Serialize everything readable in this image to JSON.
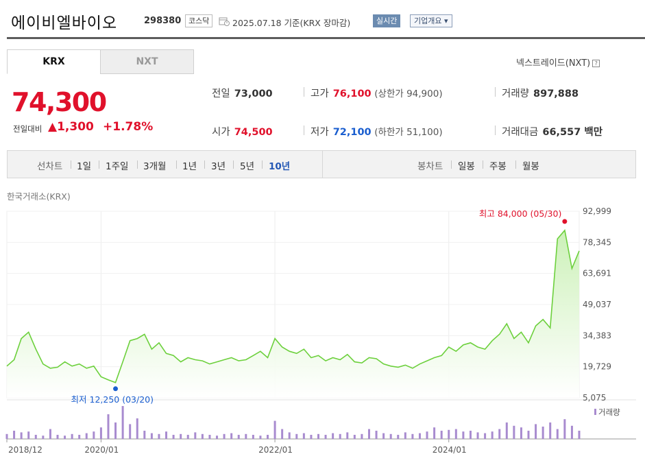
{
  "header": {
    "company_name": "에이비엘바이오",
    "code": "298380",
    "market": "코스닥",
    "date_basis": "2025.07.18  기준(KRX 장마감)",
    "realtime_label": "실시간",
    "company_info_label": "기업개요 ▾"
  },
  "tabs": {
    "krx": "KRX",
    "nxt": "NXT"
  },
  "nxt_link": "넥스트레이드(NXT)",
  "price": {
    "current": "74,300",
    "change_label": "전일대비",
    "change_value": "▲1,300",
    "change_pct": "+1.78%"
  },
  "stats": {
    "prev_label": "전일",
    "prev": "73,000",
    "high_label": "고가",
    "high": "76,100",
    "upper_limit": "(상한가 94,900)",
    "volume_label": "거래량",
    "volume": "897,888",
    "open_label": "시가",
    "open": "74,500",
    "low_label": "저가",
    "low": "72,100",
    "lower_limit": "(하한가 51,100)",
    "amount_label": "거래대금",
    "amount": "66,557 백만"
  },
  "periods": {
    "line_label": "선차트",
    "items": [
      "1일",
      "1주일",
      "3개월",
      "1년",
      "3년",
      "5년",
      "10년"
    ],
    "selected": "10년",
    "candle_label": "봉차트",
    "candle_items": [
      "일봉",
      "주봉",
      "월봉"
    ]
  },
  "exchange_label": "한국거래소(KRX)",
  "colors": {
    "up": "#e0112b",
    "down": "#1a5ecf",
    "line": "#6cd03c"
  },
  "chart_data": {
    "type": "area",
    "x_ticks": [
      "2018/12",
      "2020/01",
      "2022/01",
      "2024/01"
    ],
    "y_ticks": [
      92999,
      78345,
      63691,
      49037,
      34383,
      19729,
      5075
    ],
    "ylim": [
      5075,
      92999
    ],
    "max_annotation": "최고 84,000 (05/30)",
    "min_annotation": "최저 12,250 (03/20)",
    "volume_legend": "거래량",
    "x": [
      "2018/12",
      "2019/01",
      "2019/02",
      "2019/03",
      "2019/04",
      "2019/05",
      "2019/06",
      "2019/07",
      "2019/08",
      "2019/09",
      "2019/10",
      "2019/11",
      "2019/12",
      "2020/01",
      "2020/02",
      "2020/03",
      "2020/04",
      "2020/05",
      "2020/06",
      "2020/07",
      "2020/08",
      "2020/09",
      "2020/10",
      "2020/11",
      "2020/12",
      "2021/01",
      "2021/02",
      "2021/03",
      "2021/04",
      "2021/05",
      "2021/06",
      "2021/07",
      "2021/08",
      "2021/09",
      "2021/10",
      "2021/11",
      "2021/12",
      "2022/01",
      "2022/02",
      "2022/03",
      "2022/04",
      "2022/05",
      "2022/06",
      "2022/07",
      "2022/08",
      "2022/09",
      "2022/10",
      "2022/11",
      "2022/12",
      "2023/01",
      "2023/02",
      "2023/03",
      "2023/04",
      "2023/05",
      "2023/06",
      "2023/07",
      "2023/08",
      "2023/09",
      "2023/10",
      "2023/11",
      "2023/12",
      "2024/01",
      "2024/02",
      "2024/03",
      "2024/04",
      "2024/05",
      "2024/06",
      "2024/07",
      "2024/08",
      "2024/09",
      "2024/10",
      "2024/11",
      "2024/12",
      "2025/01",
      "2025/02",
      "2025/03",
      "2025/04",
      "2025/05",
      "2025/06",
      "2025/07"
    ],
    "values": [
      20000,
      23000,
      33000,
      36000,
      28000,
      21000,
      19000,
      19500,
      22000,
      20000,
      21000,
      19000,
      20000,
      15000,
      13500,
      12250,
      22000,
      32000,
      33000,
      35000,
      28000,
      31000,
      26000,
      25000,
      22000,
      24000,
      23000,
      22500,
      21000,
      22000,
      23000,
      24000,
      22500,
      23000,
      25000,
      27000,
      24000,
      33000,
      29000,
      27000,
      26000,
      28000,
      24000,
      25000,
      22500,
      24000,
      23000,
      25500,
      22000,
      21500,
      24000,
      23500,
      21000,
      20000,
      19500,
      20500,
      19000,
      21000,
      22500,
      24000,
      25000,
      29000,
      27000,
      30000,
      31000,
      29000,
      28000,
      32000,
      35000,
      40000,
      33000,
      36000,
      31000,
      39000,
      42000,
      38000,
      80000,
      84000,
      66000,
      74300
    ],
    "volumes": [
      6,
      10,
      8,
      9,
      5,
      4,
      12,
      5,
      4,
      6,
      5,
      7,
      9,
      14,
      30,
      20,
      40,
      18,
      25,
      10,
      7,
      6,
      9,
      5,
      6,
      5,
      8,
      6,
      5,
      4,
      6,
      7,
      5,
      6,
      5,
      4,
      5,
      22,
      12,
      8,
      6,
      7,
      5,
      6,
      5,
      7,
      6,
      8,
      5,
      6,
      12,
      10,
      7,
      6,
      5,
      8,
      6,
      7,
      9,
      14,
      10,
      11,
      12,
      9,
      10,
      8,
      7,
      9,
      12,
      20,
      16,
      14,
      10,
      18,
      15,
      20,
      12,
      24,
      16,
      10
    ]
  }
}
